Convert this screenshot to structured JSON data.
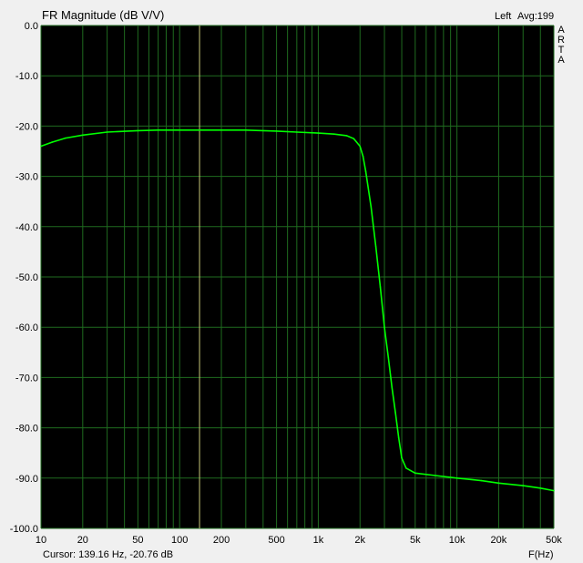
{
  "header": {
    "title": "FR Magnitude (dB V/V)",
    "channel": "Left",
    "average": "Avg:199",
    "vertical_label": "ARTA"
  },
  "footer": {
    "cursor_readout": "Cursor: 139.16 Hz, -20.76 dB",
    "x_unit": "F(Hz)"
  },
  "colors": {
    "plot_background": "#000000",
    "grid": "#1f6b1f",
    "trace": "#00ff00",
    "cursor_line": "#c8c87a"
  },
  "chart_data": {
    "type": "line",
    "title": "FR Magnitude (dB V/V)",
    "xlabel": "F(Hz)",
    "ylabel": "",
    "x_scale": "log",
    "xlim": [
      10,
      50000
    ],
    "ylim": [
      -100,
      0
    ],
    "grid": true,
    "x_tick_values": [
      10,
      20,
      50,
      100,
      200,
      500,
      1000,
      2000,
      5000,
      10000,
      20000,
      50000
    ],
    "x_tick_labels": [
      "10",
      "20",
      "50",
      "100",
      "200",
      "500",
      "1k",
      "2k",
      "5k",
      "10k",
      "20k",
      "50k"
    ],
    "y_tick_values": [
      0,
      -10,
      -20,
      -30,
      -40,
      -50,
      -60,
      -70,
      -80,
      -90,
      -100
    ],
    "y_tick_labels": [
      "0.0",
      "-10.0",
      "-20.0",
      "-30.0",
      "-40.0",
      "-50.0",
      "-60.0",
      "-70.0",
      "-80.0",
      "-90.0",
      "-100.0"
    ],
    "cursor": {
      "x": 139.16,
      "y": -20.76
    },
    "series": [
      {
        "x": [
          10,
          12,
          15,
          20,
          30,
          50,
          70,
          100,
          150,
          200,
          300,
          500,
          700,
          1000,
          1300,
          1600,
          1800,
          2000,
          2100,
          2200,
          2400,
          2600,
          2800,
          3000,
          3200,
          3400,
          3600,
          3800,
          4000,
          4300,
          5000,
          7000,
          10000,
          15000,
          20000,
          30000,
          40000,
          50000
        ],
        "y": [
          -24,
          -23.2,
          -22.4,
          -21.8,
          -21.2,
          -20.9,
          -20.8,
          -20.8,
          -20.8,
          -20.8,
          -20.8,
          -21.0,
          -21.2,
          -21.4,
          -21.6,
          -21.9,
          -22.5,
          -24.0,
          -26.0,
          -29.0,
          -36.0,
          -44.0,
          -52.0,
          -60.0,
          -66.0,
          -72.0,
          -77.0,
          -82.0,
          -86.0,
          -88.0,
          -89.0,
          -89.5,
          -90.0,
          -90.5,
          -91.0,
          -91.5,
          -92.0,
          -92.5
        ]
      }
    ]
  }
}
